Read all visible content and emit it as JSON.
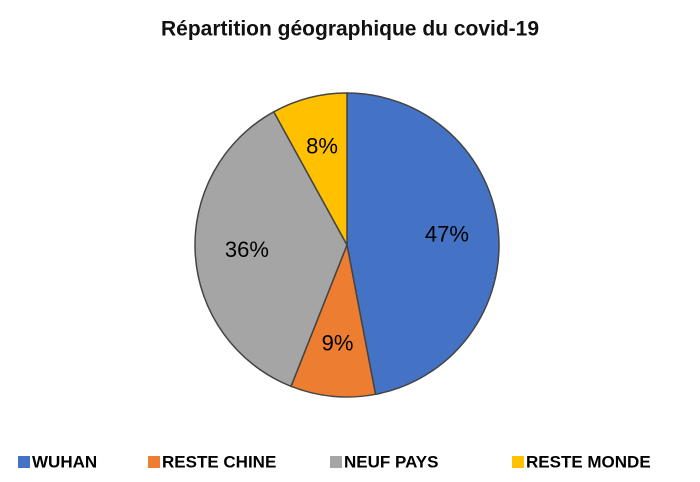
{
  "chart_data": {
    "type": "pie",
    "title": "Répartition géographique du covid-19",
    "categories": [
      "WUHAN",
      "RESTE CHINE",
      "NEUF PAYS",
      "RESTE MONDE"
    ],
    "values": [
      47,
      9,
      36,
      8
    ],
    "value_labels": [
      "47%",
      "9%",
      "36%",
      "8%"
    ],
    "colors": [
      "#4472c4",
      "#ed7d31",
      "#a5a5a5",
      "#ffc000"
    ],
    "legend": "bottom"
  }
}
